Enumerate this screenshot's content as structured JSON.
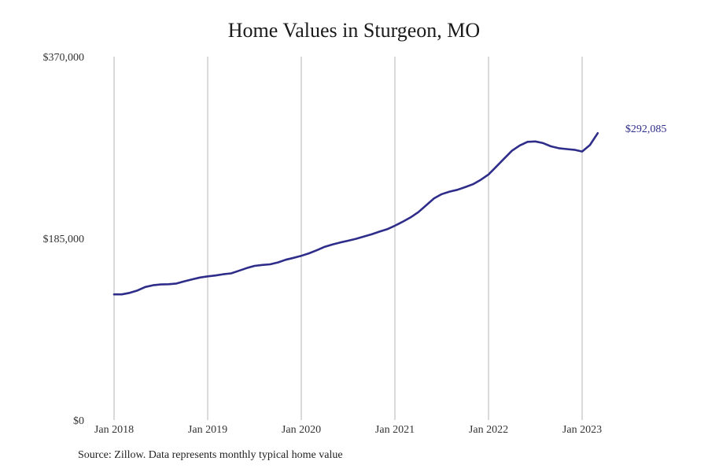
{
  "title": "Home Values in Sturgeon, MO",
  "source": "Source: Zillow. Data represents monthly typical home value",
  "colors": {
    "line": "#2e2d8a",
    "grid": "#b5b5b5"
  },
  "chart_data": {
    "type": "line",
    "title": "Home Values in Sturgeon, MO",
    "xlabel": "",
    "ylabel": "",
    "ylim": [
      0,
      370000
    ],
    "yticks": [
      0,
      185000,
      370000
    ],
    "ytick_labels": [
      "$0",
      "$185,000",
      "$370,000"
    ],
    "xtick_labels": [
      "Jan 2018",
      "Jan 2019",
      "Jan 2020",
      "Jan 2021",
      "Jan 2022",
      "Jan 2023"
    ],
    "x_start": "2018-01",
    "grid": "vertical",
    "end_label": "$292,085",
    "series": [
      {
        "x": [
          "2018-01",
          "2018-02",
          "2018-03",
          "2018-04",
          "2018-05",
          "2018-06",
          "2018-07",
          "2018-08",
          "2018-09",
          "2018-10",
          "2018-11",
          "2018-12",
          "2019-01",
          "2019-02",
          "2019-03",
          "2019-04",
          "2019-05",
          "2019-06",
          "2019-07",
          "2019-08",
          "2019-09",
          "2019-10",
          "2019-11",
          "2019-12",
          "2020-01",
          "2020-02",
          "2020-03",
          "2020-04",
          "2020-05",
          "2020-06",
          "2020-07",
          "2020-08",
          "2020-09",
          "2020-10",
          "2020-11",
          "2020-12",
          "2021-01",
          "2021-02",
          "2021-03",
          "2021-04",
          "2021-05",
          "2021-06",
          "2021-07",
          "2021-08",
          "2021-09",
          "2021-10",
          "2021-11",
          "2021-12",
          "2022-01",
          "2022-02",
          "2022-03",
          "2022-04",
          "2022-05",
          "2022-06",
          "2022-07",
          "2022-08",
          "2022-09",
          "2022-10",
          "2022-11",
          "2022-12",
          "2023-01",
          "2023-02",
          "2023-03"
        ],
        "values": [
          128000,
          128000,
          129500,
          132000,
          135500,
          137300,
          138100,
          138300,
          139000,
          141300,
          143300,
          145100,
          146300,
          147200,
          148500,
          149400,
          152000,
          154700,
          157000,
          157900,
          158600,
          160500,
          163200,
          165100,
          167200,
          169800,
          172900,
          176400,
          178800,
          180800,
          182600,
          184500,
          186800,
          189100,
          191800,
          194300,
          197900,
          201900,
          206300,
          211700,
          218600,
          225600,
          230000,
          232600,
          234400,
          237100,
          240100,
          244600,
          250000,
          258000,
          266100,
          274200,
          279600,
          283300,
          283700,
          282000,
          278700,
          276800,
          275900,
          275200,
          273400,
          280000,
          292085
        ]
      }
    ]
  }
}
